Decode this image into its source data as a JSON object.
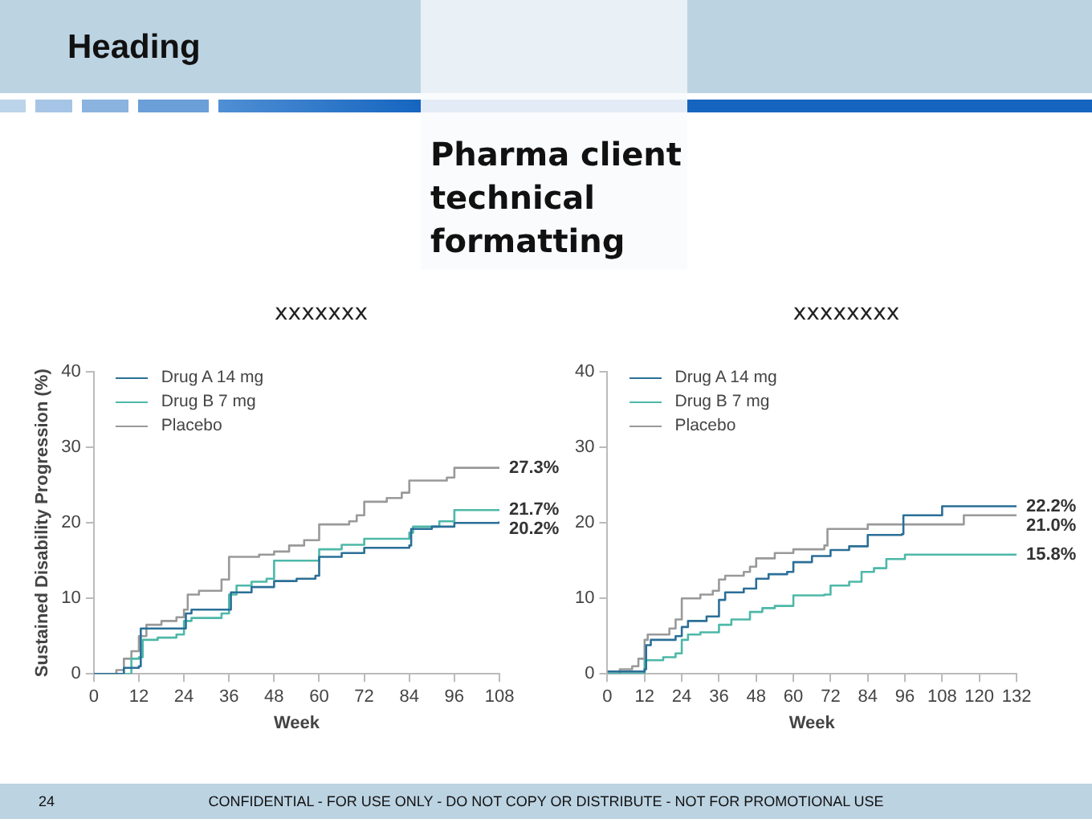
{
  "chart_data": [
    {
      "type": "step",
      "title": "xxxxxxx",
      "xlabel": "Week",
      "ylabel": "Sustained Disability Progression (%)",
      "xlim": [
        0,
        108
      ],
      "xticks": [
        0,
        12,
        24,
        36,
        48,
        60,
        72,
        84,
        96,
        108
      ],
      "ylim": [
        0,
        40
      ],
      "yticks": [
        0,
        10,
        20,
        30,
        40
      ],
      "grid": false,
      "legend": "top left",
      "annotations": [
        "Heading",
        "Pharma client technical formatting",
        "24",
        "CONFIDENTIAL - FOR USE ONLY - DO NOT COPY OR DISTRIBUTE - NOT FOR PROMOTIONAL USE"
      ],
      "series": [
        {
          "name": "Drug A 14 mg",
          "color": "#2a6f97",
          "x": [
            0,
            8,
            12,
            12.5,
            24,
            24.5,
            26,
            36,
            36.5,
            42,
            48,
            54,
            59,
            60,
            66,
            72,
            84,
            84.5,
            90,
            96,
            108
          ],
          "values": [
            0,
            0.8,
            1,
            6,
            6,
            8,
            8.5,
            8.5,
            10.8,
            11.5,
            12.3,
            12.6,
            13,
            15.5,
            16,
            16.7,
            17,
            19.2,
            19.5,
            20,
            20.2
          ],
          "value_labels": [
            null,
            null,
            null,
            null,
            null,
            null,
            null,
            null,
            null,
            null,
            null,
            null,
            null,
            null,
            null,
            null,
            null,
            null,
            null,
            null,
            "20.2%"
          ]
        },
        {
          "name": "Drug B 7 mg",
          "color": "#4db8a8",
          "x": [
            0,
            10,
            12,
            13,
            17,
            22,
            24,
            26,
            34,
            36,
            38,
            42,
            46,
            48,
            60,
            66,
            72,
            84,
            85,
            92,
            96,
            108
          ],
          "values": [
            0,
            2,
            2.2,
            4.5,
            4.8,
            5.2,
            7,
            7.4,
            8,
            10.5,
            11.7,
            12.2,
            12.6,
            15,
            16.5,
            17.1,
            17.9,
            18.7,
            19.5,
            20.2,
            21.7,
            21.7
          ],
          "value_labels": [
            null,
            null,
            null,
            null,
            null,
            null,
            null,
            null,
            null,
            null,
            null,
            null,
            null,
            null,
            null,
            null,
            null,
            null,
            null,
            null,
            null,
            "21.7%"
          ]
        },
        {
          "name": "Placebo",
          "color": "#999999",
          "x": [
            0,
            6,
            8,
            10,
            12,
            14,
            18,
            22,
            24,
            25,
            28,
            32,
            34,
            36,
            44,
            48,
            52,
            56,
            60,
            68,
            70,
            72,
            78,
            82,
            84,
            94,
            96,
            108
          ],
          "values": [
            0,
            0.5,
            2,
            3,
            5,
            6.5,
            7,
            7.5,
            8.5,
            10.5,
            11,
            11,
            12.5,
            15.5,
            15.8,
            16.2,
            17,
            17.7,
            19.8,
            20.2,
            21,
            22.8,
            23.3,
            24,
            25.6,
            26,
            27.3,
            27.3
          ],
          "value_labels": [
            null,
            null,
            null,
            null,
            null,
            null,
            null,
            null,
            null,
            null,
            null,
            null,
            null,
            null,
            null,
            null,
            null,
            null,
            null,
            null,
            null,
            null,
            null,
            null,
            null,
            null,
            null,
            "27.3%"
          ]
        }
      ]
    },
    {
      "type": "step",
      "title": "xxxxxxxx",
      "xlabel": "Week",
      "xlim": [
        0,
        132
      ],
      "xticks": [
        0,
        12,
        24,
        36,
        48,
        60,
        72,
        84,
        96,
        108,
        120,
        132
      ],
      "ylim": [
        0,
        40
      ],
      "yticks": [
        0,
        10,
        20,
        30,
        40
      ],
      "grid": false,
      "legend": "top left",
      "series": [
        {
          "name": "Drug A 14 mg",
          "color": "#2a6f97",
          "x": [
            0,
            12,
            12.5,
            14,
            22,
            24,
            26,
            32,
            36,
            38,
            44,
            48,
            52,
            58,
            60,
            66,
            72,
            78,
            84,
            95,
            95.5,
            108,
            132
          ],
          "values": [
            0.3,
            0.6,
            3.8,
            4.5,
            5,
            6.2,
            7,
            7.6,
            9.8,
            10.8,
            11.3,
            12.6,
            13.2,
            13.5,
            14.8,
            15.6,
            16.4,
            16.9,
            18.4,
            18.5,
            21,
            22.2,
            22.2
          ],
          "value_labels": [
            null,
            null,
            null,
            null,
            null,
            null,
            null,
            null,
            null,
            null,
            null,
            null,
            null,
            null,
            null,
            null,
            null,
            null,
            null,
            null,
            null,
            null,
            "22.2%"
          ]
        },
        {
          "name": "Drug B 7 mg",
          "color": "#4db8a8",
          "x": [
            0,
            12,
            18,
            22,
            24,
            26,
            30,
            36,
            40,
            46,
            50,
            54,
            60,
            70,
            72,
            78,
            82,
            86,
            90,
            96,
            132
          ],
          "values": [
            0,
            1.8,
            2.2,
            2.7,
            4.5,
            5.2,
            5.5,
            6.5,
            7.2,
            8.2,
            8.7,
            9,
            10.4,
            10.5,
            11.7,
            12.2,
            13.5,
            14,
            15.2,
            15.8,
            15.8
          ],
          "value_labels": [
            null,
            null,
            null,
            null,
            null,
            null,
            null,
            null,
            null,
            null,
            null,
            null,
            null,
            null,
            null,
            null,
            null,
            null,
            null,
            null,
            "15.8%"
          ]
        },
        {
          "name": "Placebo",
          "color": "#999999",
          "x": [
            0,
            4,
            8,
            10,
            12,
            13,
            20,
            22,
            24,
            30,
            34,
            36,
            38,
            44,
            46,
            48,
            54,
            60,
            70,
            71,
            84,
            115,
            132
          ],
          "values": [
            0,
            0.6,
            1,
            2,
            4.5,
            5.2,
            6,
            7.2,
            10,
            10.5,
            11,
            12.5,
            13,
            13.5,
            14.2,
            15.3,
            16,
            16.5,
            17,
            19.2,
            19.8,
            21,
            21
          ],
          "value_labels": [
            null,
            null,
            null,
            null,
            null,
            null,
            null,
            null,
            null,
            null,
            null,
            null,
            null,
            null,
            null,
            null,
            null,
            null,
            null,
            null,
            null,
            null,
            "21.0%"
          ]
        }
      ]
    }
  ]
}
